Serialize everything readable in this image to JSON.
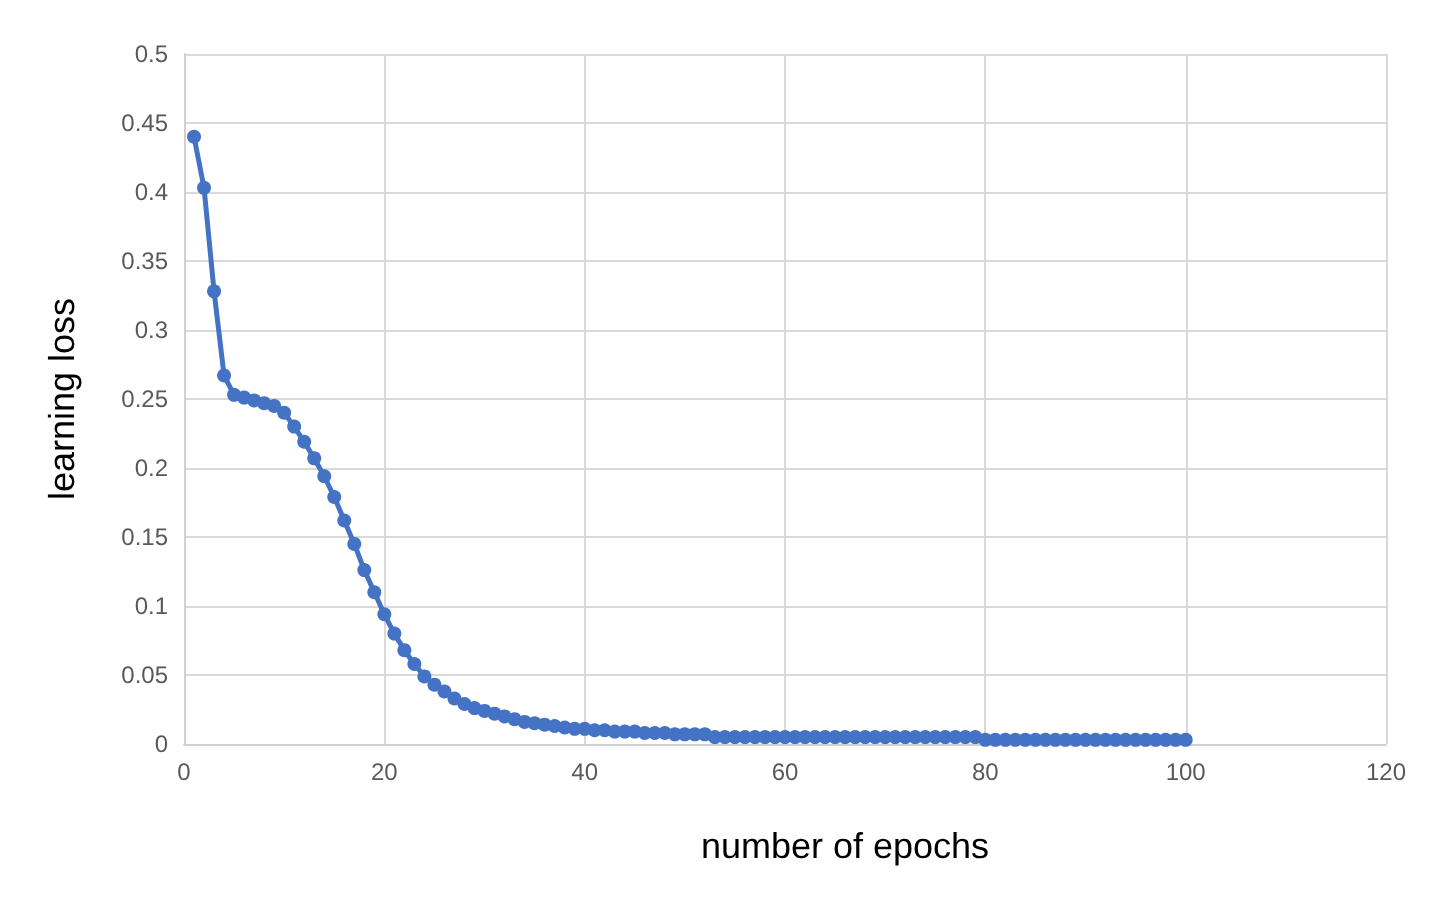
{
  "chart_data": {
    "type": "line",
    "xlabel": "number of epochs",
    "ylabel": "learning loss",
    "x": [
      1,
      2,
      3,
      4,
      5,
      6,
      7,
      8,
      9,
      10,
      11,
      12,
      13,
      14,
      15,
      16,
      17,
      18,
      19,
      20,
      21,
      22,
      23,
      24,
      25,
      26,
      27,
      28,
      29,
      30,
      31,
      32,
      33,
      34,
      35,
      36,
      37,
      38,
      39,
      40,
      41,
      42,
      43,
      44,
      45,
      46,
      47,
      48,
      49,
      50,
      51,
      52,
      53,
      54,
      55,
      56,
      57,
      58,
      59,
      60,
      61,
      62,
      63,
      64,
      65,
      66,
      67,
      68,
      69,
      70,
      71,
      72,
      73,
      74,
      75,
      76,
      77,
      78,
      79,
      80,
      81,
      82,
      83,
      84,
      85,
      86,
      87,
      88,
      89,
      90,
      91,
      92,
      93,
      94,
      95,
      96,
      97,
      98,
      99,
      100
    ],
    "series": [
      {
        "color": "#4472c4",
        "values": [
          0.44,
          0.403,
          0.328,
          0.267,
          0.253,
          0.251,
          0.249,
          0.247,
          0.245,
          0.24,
          0.23,
          0.219,
          0.207,
          0.194,
          0.179,
          0.162,
          0.145,
          0.126,
          0.11,
          0.094,
          0.08,
          0.068,
          0.058,
          0.049,
          0.043,
          0.038,
          0.033,
          0.029,
          0.026,
          0.024,
          0.022,
          0.02,
          0.018,
          0.016,
          0.015,
          0.014,
          0.013,
          0.012,
          0.011,
          0.011,
          0.01,
          0.01,
          0.009,
          0.009,
          0.009,
          0.008,
          0.008,
          0.008,
          0.007,
          0.007,
          0.007,
          0.007,
          0.005,
          0.005,
          0.005,
          0.005,
          0.005,
          0.005,
          0.005,
          0.005,
          0.005,
          0.005,
          0.005,
          0.005,
          0.005,
          0.005,
          0.005,
          0.005,
          0.005,
          0.005,
          0.005,
          0.005,
          0.005,
          0.005,
          0.005,
          0.005,
          0.005,
          0.005,
          0.005,
          0.003,
          0.003,
          0.003,
          0.003,
          0.003,
          0.003,
          0.003,
          0.003,
          0.003,
          0.003,
          0.003,
          0.003,
          0.003,
          0.003,
          0.003,
          0.003,
          0.003,
          0.003,
          0.003,
          0.003,
          0.003
        ]
      }
    ],
    "xlim": [
      0,
      120
    ],
    "xticks": [
      0,
      20,
      40,
      60,
      80,
      100,
      120
    ],
    "ylim": [
      0,
      0.5
    ],
    "yticks": [
      0,
      0.05,
      0.1,
      0.15,
      0.2,
      0.25,
      0.3,
      0.35,
      0.4,
      0.45,
      0.5
    ],
    "grid": true,
    "marker": "circle",
    "line_style": "solid"
  }
}
